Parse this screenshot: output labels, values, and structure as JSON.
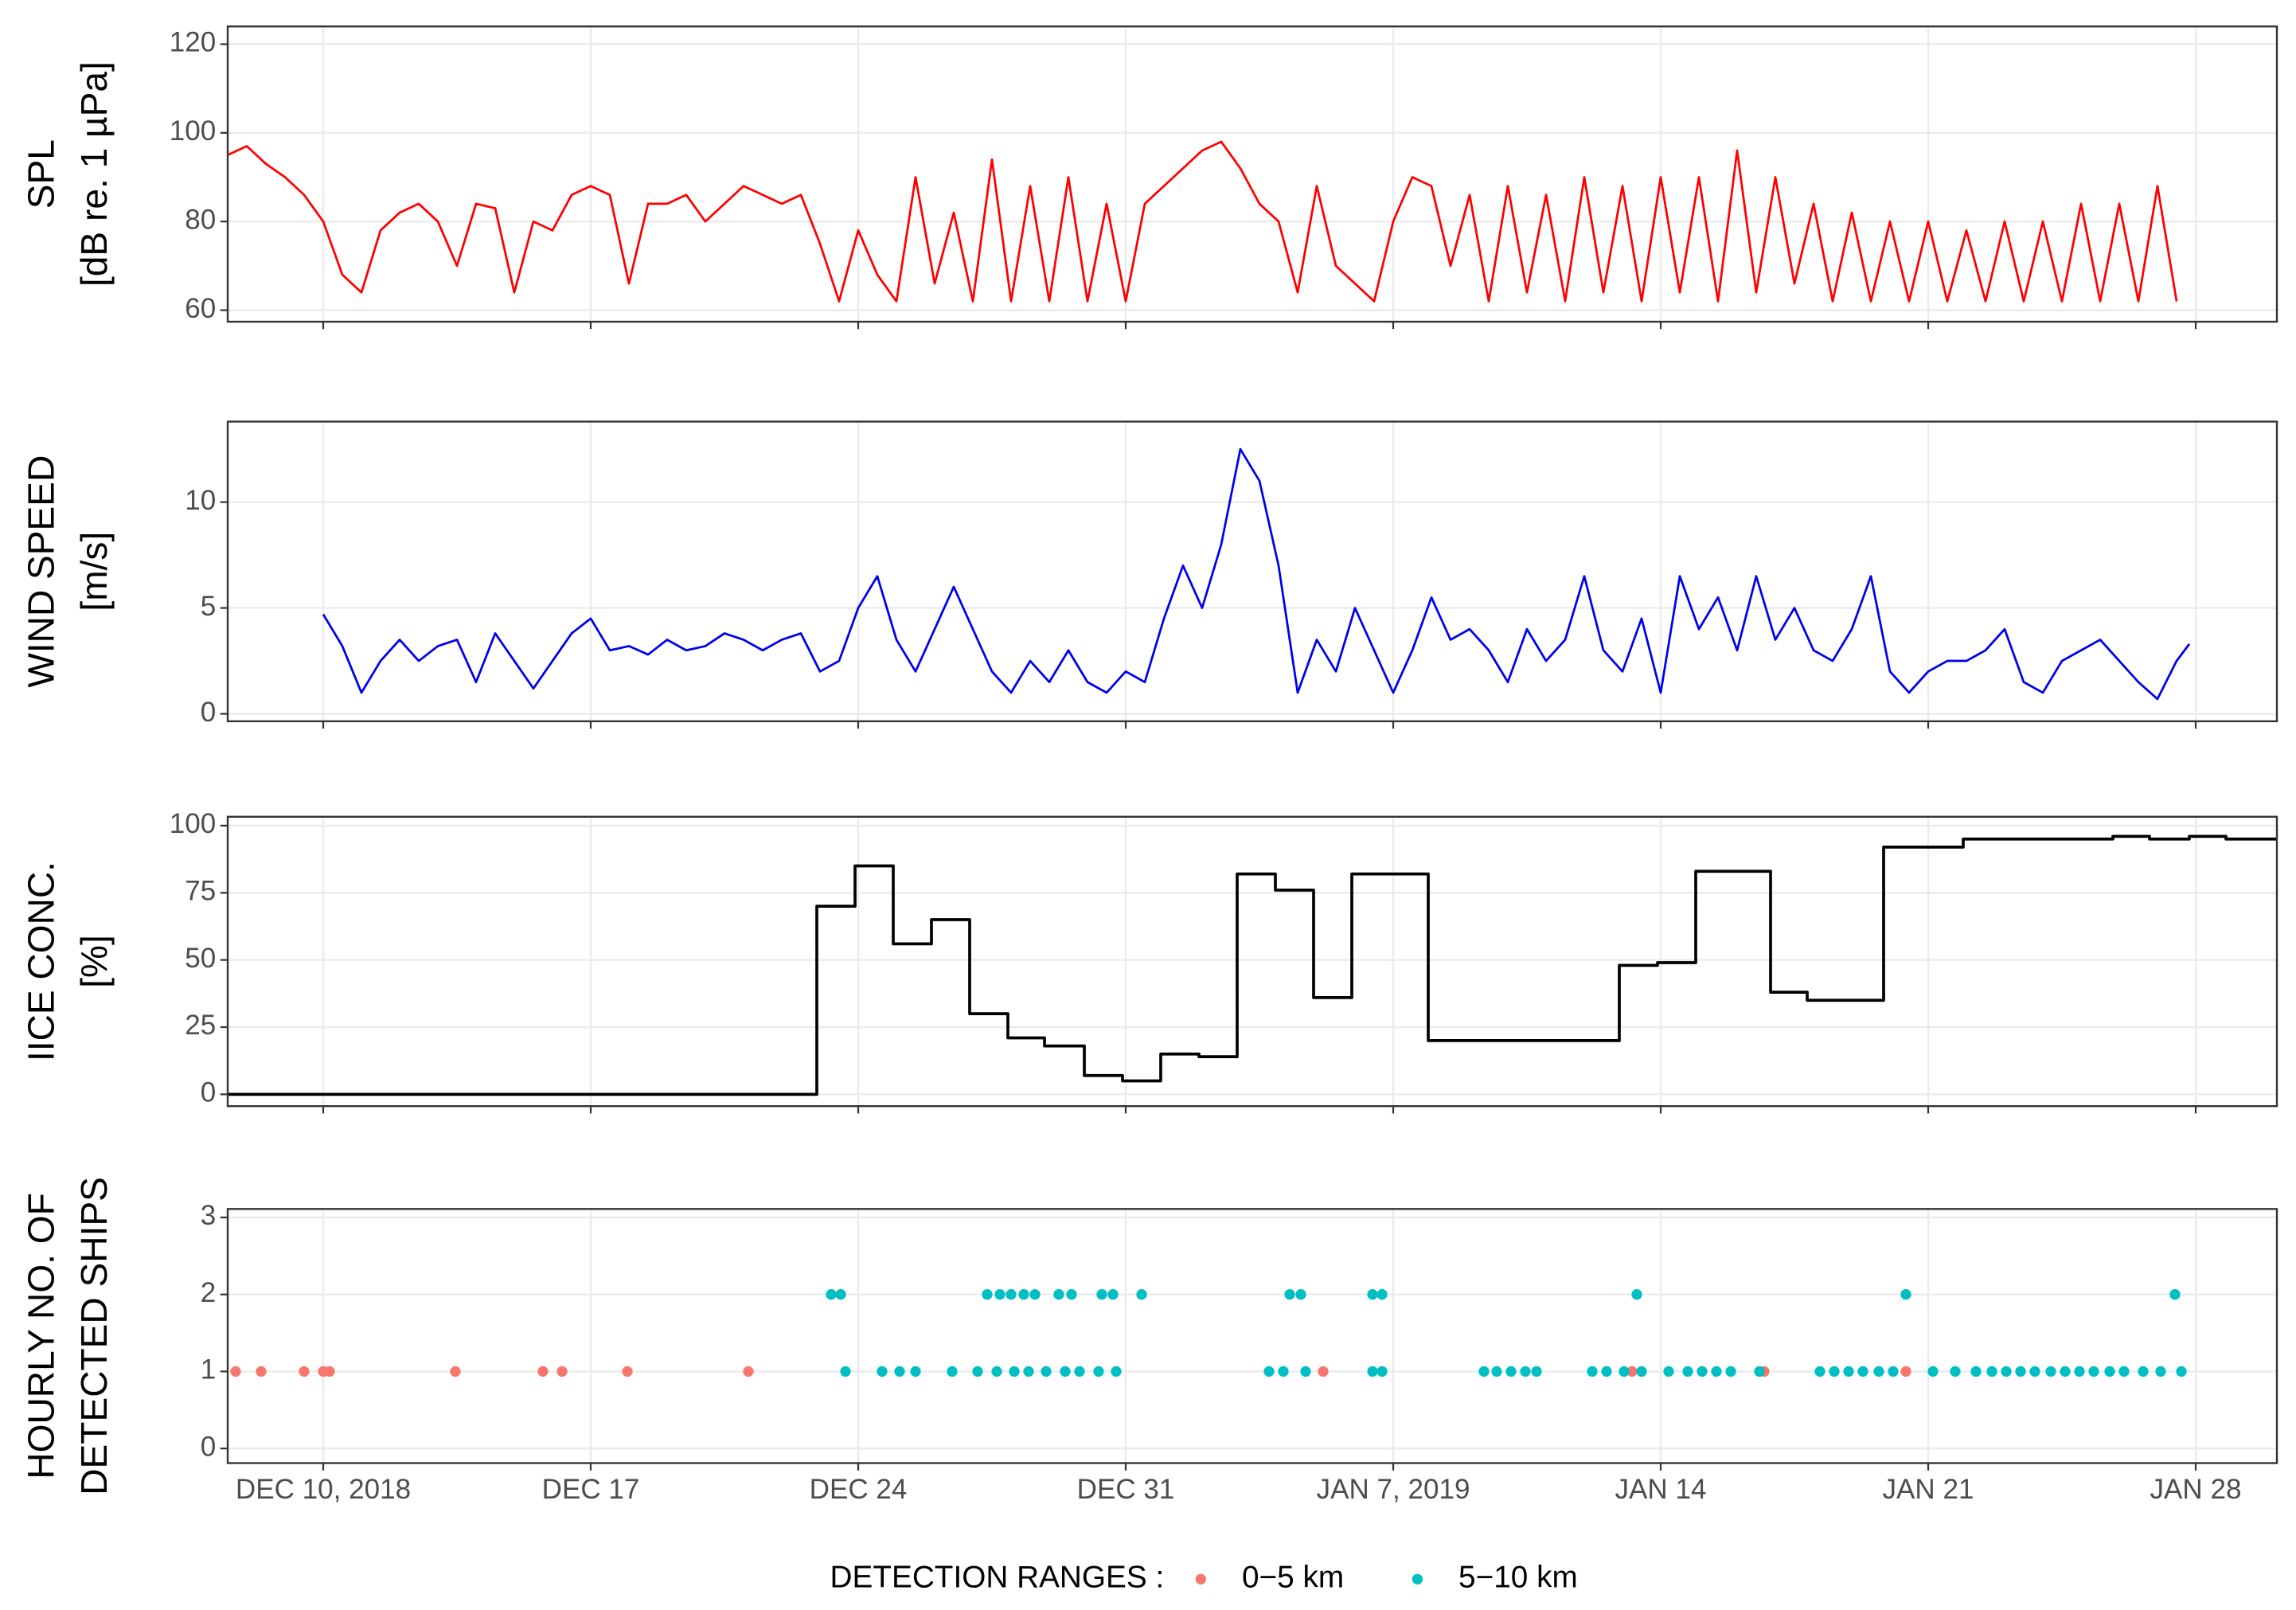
{
  "chart_data": [
    {
      "type": "line",
      "ylabel": [
        "SPL",
        "[dB re. 1 µPa]"
      ],
      "color": "#ff0000",
      "xlim": [
        "2018-12-07T12:00",
        "2019-01-30T03:00"
      ],
      "ylim": [
        57.4,
        124
      ],
      "yticks": [
        60,
        80,
        100,
        120
      ],
      "grid": true,
      "x": [
        "2018-12-07T12:00",
        "2018-12-08T00:00",
        "2018-12-08T12:00",
        "2018-12-09T00:00",
        "2018-12-09T12:00",
        "2018-12-10T00:00",
        "2018-12-10T12:00",
        "2018-12-11T00:00",
        "2018-12-11T12:00",
        "2018-12-12T00:00",
        "2018-12-12T12:00",
        "2018-12-13T00:00",
        "2018-12-13T12:00",
        "2018-12-14T00:00",
        "2018-12-14T12:00",
        "2018-12-15T00:00",
        "2018-12-15T12:00",
        "2018-12-16T00:00",
        "2018-12-16T12:00",
        "2018-12-17T00:00",
        "2018-12-17T12:00",
        "2018-12-18T00:00",
        "2018-12-18T12:00",
        "2018-12-19T00:00",
        "2018-12-19T12:00",
        "2018-12-20T00:00",
        "2018-12-20T12:00",
        "2018-12-21T00:00",
        "2018-12-21T12:00",
        "2018-12-22T00:00",
        "2018-12-22T12:00",
        "2018-12-23T00:00",
        "2018-12-23T12:00",
        "2018-12-24T00:00",
        "2018-12-24T12:00",
        "2018-12-25T00:00",
        "2018-12-25T12:00",
        "2018-12-26T00:00",
        "2018-12-26T12:00",
        "2018-12-27T00:00",
        "2018-12-27T12:00",
        "2018-12-28T00:00",
        "2018-12-28T12:00",
        "2018-12-29T00:00",
        "2018-12-29T12:00",
        "2018-12-30T00:00",
        "2018-12-30T12:00",
        "2018-12-31T00:00",
        "2018-12-31T12:00",
        "2019-01-01T00:00",
        "2019-01-01T12:00",
        "2019-01-02T00:00",
        "2019-01-02T12:00",
        "2019-01-03T00:00",
        "2019-01-03T12:00",
        "2019-01-04T00:00",
        "2019-01-04T12:00",
        "2019-01-05T00:00",
        "2019-01-05T12:00",
        "2019-01-06T00:00",
        "2019-01-06T12:00",
        "2019-01-07T00:00",
        "2019-01-07T12:00",
        "2019-01-08T00:00",
        "2019-01-08T12:00",
        "2019-01-09T00:00",
        "2019-01-09T12:00",
        "2019-01-10T00:00",
        "2019-01-10T12:00",
        "2019-01-11T00:00",
        "2019-01-11T12:00",
        "2019-01-12T00:00",
        "2019-01-12T12:00",
        "2019-01-13T00:00",
        "2019-01-13T12:00",
        "2019-01-14T00:00",
        "2019-01-14T12:00",
        "2019-01-15T00:00",
        "2019-01-15T12:00",
        "2019-01-16T00:00",
        "2019-01-16T12:00",
        "2019-01-17T00:00",
        "2019-01-17T12:00",
        "2019-01-18T00:00",
        "2019-01-18T12:00",
        "2019-01-19T00:00",
        "2019-01-19T12:00",
        "2019-01-20T00:00",
        "2019-01-20T12:00",
        "2019-01-21T00:00",
        "2019-01-21T12:00",
        "2019-01-22T00:00",
        "2019-01-22T12:00",
        "2019-01-23T00:00",
        "2019-01-23T12:00",
        "2019-01-24T00:00",
        "2019-01-24T12:00",
        "2019-01-25T00:00",
        "2019-01-25T12:00",
        "2019-01-26T00:00",
        "2019-01-26T12:00",
        "2019-01-27T00:00",
        "2019-01-27T12:00"
      ],
      "values": [
        95,
        97,
        93,
        90,
        86,
        80,
        68,
        64,
        78,
        82,
        84,
        80,
        70,
        84,
        83,
        64,
        80,
        78,
        86,
        88,
        86,
        66,
        84,
        84,
        86,
        80,
        84,
        88,
        86,
        84,
        86,
        75,
        62,
        78,
        68,
        62,
        90,
        66,
        82,
        62,
        94,
        62,
        88,
        62,
        90,
        62,
        84,
        62,
        84,
        88,
        92,
        96,
        98,
        92,
        84,
        80,
        64,
        88,
        70,
        66,
        62,
        80,
        90,
        88,
        70,
        86,
        62,
        88,
        64,
        86,
        62,
        90,
        64,
        88,
        62,
        90,
        64,
        90,
        62,
        96,
        64,
        90,
        66,
        84,
        62,
        82,
        62,
        80,
        62,
        80,
        62,
        78,
        62,
        80,
        62,
        80,
        62,
        84,
        62,
        84,
        62,
        88,
        62
      ]
    },
    {
      "type": "line",
      "ylabel": [
        "WIND SPEED",
        "[m/s]"
      ],
      "color": "#0000ee",
      "xlim": [
        "2018-12-07T12:00",
        "2019-01-30T03:00"
      ],
      "ylim": [
        -0.35,
        13.8
      ],
      "yticks": [
        0,
        5,
        10
      ],
      "grid": true,
      "x": [
        "2018-12-10T00:00",
        "2018-12-10T12:00",
        "2018-12-11T00:00",
        "2018-12-11T12:00",
        "2018-12-12T00:00",
        "2018-12-12T12:00",
        "2018-12-13T00:00",
        "2018-12-13T12:00",
        "2018-12-14T00:00",
        "2018-12-14T12:00",
        "2018-12-15T00:00",
        "2018-12-15T12:00",
        "2018-12-16T00:00",
        "2018-12-16T12:00",
        "2018-12-17T00:00",
        "2018-12-17T12:00",
        "2018-12-18T00:00",
        "2018-12-18T12:00",
        "2018-12-19T00:00",
        "2018-12-19T12:00",
        "2018-12-20T00:00",
        "2018-12-20T12:00",
        "2018-12-21T00:00",
        "2018-12-21T12:00",
        "2018-12-22T00:00",
        "2018-12-22T12:00",
        "2018-12-23T00:00",
        "2018-12-23T12:00",
        "2018-12-24T00:00",
        "2018-12-24T12:00",
        "2018-12-25T00:00",
        "2018-12-25T12:00",
        "2018-12-26T00:00",
        "2018-12-26T12:00",
        "2018-12-27T00:00",
        "2018-12-27T12:00",
        "2018-12-28T00:00",
        "2018-12-28T12:00",
        "2018-12-29T00:00",
        "2018-12-29T12:00",
        "2018-12-30T00:00",
        "2018-12-30T12:00",
        "2018-12-31T00:00",
        "2018-12-31T12:00",
        "2019-01-01T00:00",
        "2019-01-01T12:00",
        "2019-01-02T00:00",
        "2019-01-02T12:00",
        "2019-01-03T00:00",
        "2019-01-03T12:00",
        "2019-01-04T00:00",
        "2019-01-04T12:00",
        "2019-01-05T00:00",
        "2019-01-05T12:00",
        "2019-01-06T00:00",
        "2019-01-06T12:00",
        "2019-01-07T00:00",
        "2019-01-07T12:00",
        "2019-01-08T00:00",
        "2019-01-08T12:00",
        "2019-01-09T00:00",
        "2019-01-09T12:00",
        "2019-01-10T00:00",
        "2019-01-10T12:00",
        "2019-01-11T00:00",
        "2019-01-11T12:00",
        "2019-01-12T00:00",
        "2019-01-12T12:00",
        "2019-01-13T00:00",
        "2019-01-13T12:00",
        "2019-01-14T00:00",
        "2019-01-14T12:00",
        "2019-01-15T00:00",
        "2019-01-15T12:00",
        "2019-01-16T00:00",
        "2019-01-16T12:00",
        "2019-01-17T00:00",
        "2019-01-17T12:00",
        "2019-01-18T00:00",
        "2019-01-18T12:00",
        "2019-01-19T00:00",
        "2019-01-19T12:00",
        "2019-01-20T00:00",
        "2019-01-20T12:00",
        "2019-01-21T00:00",
        "2019-01-21T12:00",
        "2019-01-22T00:00",
        "2019-01-22T12:00",
        "2019-01-23T00:00",
        "2019-01-23T12:00",
        "2019-01-24T00:00",
        "2019-01-24T12:00",
        "2019-01-25T00:00",
        "2019-01-25T12:00",
        "2019-01-26T00:00",
        "2019-01-26T12:00",
        "2019-01-27T00:00",
        "2019-01-27T12:00",
        "2019-01-27T20:00"
      ],
      "values": [
        4.7,
        3.2,
        1.0,
        2.5,
        3.5,
        2.5,
        3.2,
        3.5,
        1.5,
        3.8,
        2.5,
        1.2,
        2.5,
        3.8,
        4.5,
        3.0,
        3.2,
        2.8,
        3.5,
        3.0,
        3.2,
        3.8,
        3.5,
        3.0,
        3.5,
        3.8,
        2.0,
        2.5,
        5.0,
        6.5,
        3.5,
        2.0,
        4.0,
        6.0,
        4.0,
        2.0,
        1.0,
        2.5,
        1.5,
        3.0,
        1.5,
        1.0,
        2.0,
        1.5,
        4.5,
        7.0,
        5.0,
        8.0,
        12.5,
        11.0,
        7.0,
        1.0,
        3.5,
        2.0,
        5.0,
        3.0,
        1.0,
        3.0,
        5.5,
        3.5,
        4.0,
        3.0,
        1.5,
        4.0,
        2.5,
        3.5,
        6.5,
        3.0,
        2.0,
        4.5,
        1.0,
        6.5,
        4.0,
        5.5,
        3.0,
        6.5,
        3.5,
        5.0,
        3.0,
        2.5,
        4.0,
        6.5,
        2.0,
        1.0,
        2.0,
        2.5,
        2.5,
        3.0,
        4.0,
        1.5,
        1.0,
        2.5,
        3.0,
        3.5,
        2.5,
        1.5,
        0.7,
        2.5,
        3.3
      ]
    },
    {
      "type": "line",
      "step": "post",
      "ylabel": [
        "IICE CONC.",
        "[%]"
      ],
      "color": "#000000",
      "xlim": [
        "2018-12-07T12:00",
        "2019-01-30T03:00"
      ],
      "ylim": [
        -4.4,
        103.3
      ],
      "yticks": [
        0,
        25,
        50,
        75,
        100
      ],
      "grid": true,
      "x": [
        "2018-12-07T12:00",
        "2018-12-22T22:00",
        "2018-12-23T22:00",
        "2018-12-24T22:00",
        "2018-12-25T22:00",
        "2018-12-26T22:00",
        "2018-12-27T22:00",
        "2018-12-28T21:00",
        "2018-12-29T22:00",
        "2018-12-30T22:00",
        "2018-12-31T22:00",
        "2019-01-01T22:00",
        "2019-01-02T22:00",
        "2019-01-03T22:00",
        "2019-01-04T22:00",
        "2019-01-05T22:00",
        "2019-01-07T22:00",
        "2019-01-12T22:00",
        "2019-01-13T22:00",
        "2019-01-14T22:00",
        "2019-01-16T21:00",
        "2019-01-17T20:00",
        "2019-01-19T20:00",
        "2019-01-21T22:00",
        "2019-01-25T20:00",
        "2019-01-26T19:00",
        "2019-01-27T20:00",
        "2019-01-28T19:00"
      ],
      "values": [
        0,
        70,
        85,
        56,
        65,
        30,
        21,
        18,
        7,
        5,
        15,
        14,
        82,
        76,
        36,
        82,
        20,
        48,
        49,
        83,
        38,
        35,
        92,
        95,
        96,
        95,
        96,
        95
      ]
    },
    {
      "type": "scatter",
      "ylabel": [
        "HOURLY NO. OF",
        "DETECTED SHIPS"
      ],
      "legend_title": "DETECTION RANGES :",
      "legend": "bottom",
      "xlim": [
        "2018-12-07T12:00",
        "2019-01-30T03:00"
      ],
      "ylim": [
        -0.19,
        3.11
      ],
      "yticks": [
        0,
        1,
        2,
        3
      ],
      "grid": true,
      "xticks": [
        {
          "value": "2018-12-10T00:00",
          "label": "DEC 10, 2018"
        },
        {
          "value": "2018-12-17T00:00",
          "label": "DEC 17"
        },
        {
          "value": "2018-12-24T00:00",
          "label": "DEC 24"
        },
        {
          "value": "2018-12-31T00:00",
          "label": "DEC 31"
        },
        {
          "value": "2019-01-07T00:00",
          "label": "JAN 7, 2019"
        },
        {
          "value": "2019-01-14T00:00",
          "label": "JAN 14"
        },
        {
          "value": "2019-01-21T00:00",
          "label": "JAN 21"
        },
        {
          "value": "2019-01-28T00:00",
          "label": "JAN 28"
        }
      ],
      "series": [
        {
          "name": "0−5 km",
          "color": "#f8766d",
          "x": [
            "2018-12-07T17:00",
            "2018-12-08T09:00",
            "2018-12-09T12:00",
            "2018-12-10T00:00",
            "2018-12-10T04:00",
            "2018-12-13T11:00",
            "2018-12-15T18:00",
            "2018-12-16T06:00",
            "2018-12-17T23:00",
            "2018-12-21T03:00",
            "2019-01-05T04:00",
            "2019-01-13T06:00",
            "2019-01-16T17:00",
            "2019-01-20T10:00"
          ],
          "values": [
            1,
            1,
            1,
            1,
            1,
            1,
            1,
            1,
            1,
            1,
            1,
            1,
            1,
            1
          ]
        },
        {
          "name": "5−10 km",
          "color": "#00bfc4",
          "x": [
            "2018-12-23T07:00",
            "2018-12-23T13:00",
            "2018-12-27T09:00",
            "2018-12-27T17:00",
            "2018-12-28T00:00",
            "2018-12-28T08:00",
            "2018-12-28T15:00",
            "2018-12-29T06:00",
            "2018-12-29T14:00",
            "2018-12-30T09:00",
            "2018-12-30T16:00",
            "2018-12-31T10:00",
            "2019-01-04T07:00",
            "2019-01-04T14:00",
            "2019-01-06T11:00",
            "2019-01-06T17:00",
            "2019-01-13T09:00",
            "2019-01-20T10:00",
            "2019-01-27T11:00",
            "2018-12-23T16:00",
            "2018-12-24T15:00",
            "2018-12-25T02:00",
            "2018-12-25T12:00",
            "2018-12-26T11:00",
            "2018-12-27T03:00",
            "2018-12-27T15:00",
            "2018-12-28T02:00",
            "2018-12-28T11:00",
            "2018-12-28T22:00",
            "2018-12-29T10:00",
            "2018-12-29T19:00",
            "2018-12-30T07:00",
            "2018-12-30T18:00",
            "2019-01-03T18:00",
            "2019-01-04T03:00",
            "2019-01-04T17:00",
            "2019-01-06T11:00",
            "2019-01-06T17:00",
            "2019-01-09T09:00",
            "2019-01-09T17:00",
            "2019-01-10T02:00",
            "2019-01-10T11:00",
            "2019-01-10T18:00",
            "2019-01-12T05:00",
            "2019-01-12T14:00",
            "2019-01-13T01:00",
            "2019-01-13T12:00",
            "2019-01-14T05:00",
            "2019-01-14T17:00",
            "2019-01-15T02:00",
            "2019-01-15T11:00",
            "2019-01-15T20:00",
            "2019-01-16T14:00",
            "2019-01-18T04:00",
            "2019-01-18T13:00",
            "2019-01-18T22:00",
            "2019-01-19T07:00",
            "2019-01-19T17:00",
            "2019-01-20T02:00",
            "2019-01-21T03:00",
            "2019-01-21T17:00",
            "2019-01-22T06:00",
            "2019-01-22T16:00",
            "2019-01-23T01:00",
            "2019-01-23T10:00",
            "2019-01-23T19:00",
            "2019-01-24T05:00",
            "2019-01-24T14:00",
            "2019-01-24T23:00",
            "2019-01-25T08:00",
            "2019-01-25T18:00",
            "2019-01-26T03:00",
            "2019-01-26T15:00",
            "2019-01-27T02:00",
            "2019-01-27T15:00"
          ],
          "values": [
            2,
            2,
            2,
            2,
            2,
            2,
            2,
            2,
            2,
            2,
            2,
            2,
            2,
            2,
            2,
            2,
            2,
            2,
            2,
            1,
            1,
            1,
            1,
            1,
            1,
            1,
            1,
            1,
            1,
            1,
            1,
            1,
            1,
            1,
            1,
            1,
            1,
            1,
            1,
            1,
            1,
            1,
            1,
            1,
            1,
            1,
            1,
            1,
            1,
            1,
            1,
            1,
            1,
            1,
            1,
            1,
            1,
            1,
            1,
            1,
            1,
            1,
            1,
            1,
            1,
            1,
            1,
            1,
            1,
            1,
            1,
            1,
            1,
            1,
            1
          ]
        }
      ]
    }
  ]
}
